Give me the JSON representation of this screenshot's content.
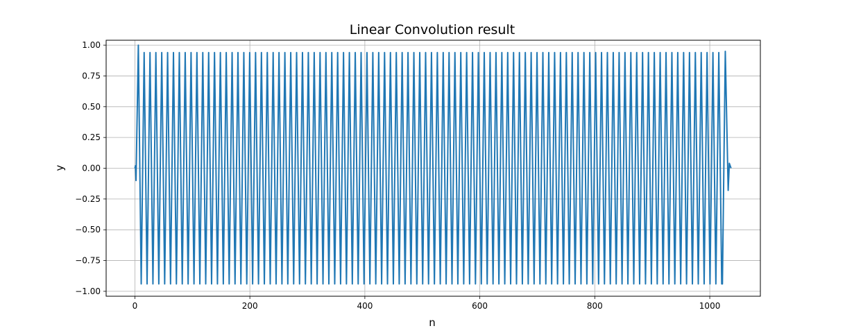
{
  "chart_data": {
    "type": "line",
    "title": "Linear Convolution result",
    "xlabel": "n",
    "ylabel": "y",
    "xlim": [
      -50,
      1088
    ],
    "ylim": [
      -1.04,
      1.04
    ],
    "xticks": [
      0,
      200,
      400,
      600,
      800,
      1000
    ],
    "xtick_labels": [
      "0",
      "200",
      "400",
      "600",
      "800",
      "1000"
    ],
    "yticks": [
      -1.0,
      -0.75,
      -0.5,
      -0.25,
      0.0,
      0.25,
      0.5,
      0.75,
      1.0
    ],
    "ytick_labels": [
      "−1.00",
      "−0.75",
      "−0.50",
      "−0.25",
      "0.00",
      "0.25",
      "0.50",
      "0.75",
      "1.00"
    ],
    "grid": true,
    "series": [
      {
        "color": "#1f77b4",
        "x_range": [
          0,
          1037
        ],
        "description_points": {
          "start": [
            [
              0,
              0.0
            ],
            [
              1,
              0.02
            ],
            [
              2,
              -0.1
            ],
            [
              6,
              1.0
            ],
            [
              11,
              -0.94
            ]
          ],
          "steady_amplitude": 0.94,
          "steady_period": 10.2,
          "end": [
            [
              1022,
              -0.94
            ],
            [
              1027,
              0.95
            ],
            [
              1032,
              -0.18
            ],
            [
              1034,
              0.04
            ],
            [
              1037,
              0.0
            ]
          ]
        }
      }
    ]
  }
}
